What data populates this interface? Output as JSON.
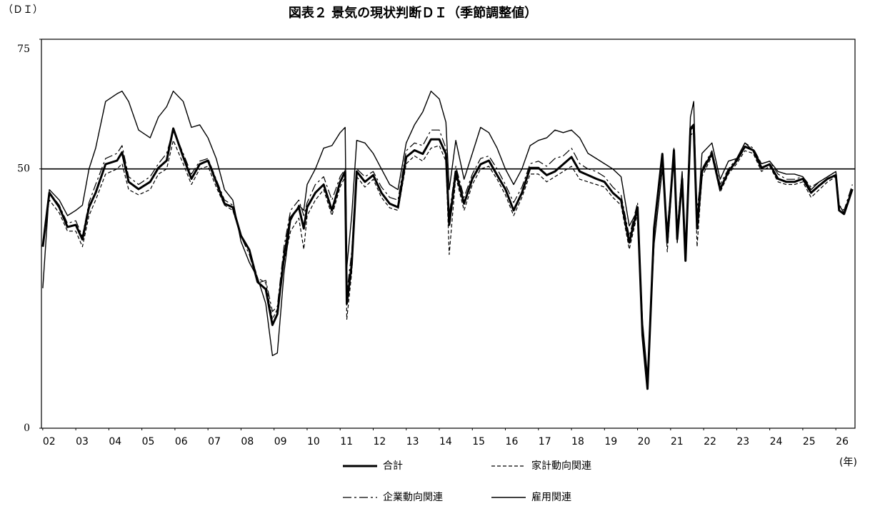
{
  "chart_data": {
    "type": "line",
    "title": "図表２ 景気の現状判断ＤＩ（季節調整値）",
    "y_label": "（ＤＩ）",
    "x_label": "(年)",
    "xlim": [
      2001.96,
      2026.58
    ],
    "ylim": [
      0,
      75
    ],
    "yticks": [
      0,
      50,
      75
    ],
    "xticks": [
      {
        "value": 2002,
        "label": "02"
      },
      {
        "value": 2003,
        "label": "03"
      },
      {
        "value": 2004,
        "label": "04"
      },
      {
        "value": 2005,
        "label": "05"
      },
      {
        "value": 2006,
        "label": "06"
      },
      {
        "value": 2007,
        "label": "07"
      },
      {
        "value": 2008,
        "label": "08"
      },
      {
        "value": 2009,
        "label": "09"
      },
      {
        "value": 2010,
        "label": "10"
      },
      {
        "value": 2011,
        "label": "11"
      },
      {
        "value": 2012,
        "label": "12"
      },
      {
        "value": 2013,
        "label": "13"
      },
      {
        "value": 2014,
        "label": "14"
      },
      {
        "value": 2015,
        "label": "15"
      },
      {
        "value": 2016,
        "label": "16"
      },
      {
        "value": 2017,
        "label": "17"
      },
      {
        "value": 2018,
        "label": "18"
      },
      {
        "value": 2019,
        "label": "19"
      },
      {
        "value": 2020,
        "label": "20"
      },
      {
        "value": 2021,
        "label": "21"
      },
      {
        "value": 2022,
        "label": "22"
      },
      {
        "value": 2023,
        "label": "23"
      },
      {
        "value": 2024,
        "label": "24"
      },
      {
        "value": 2025,
        "label": "25"
      },
      {
        "value": 2026,
        "label": "26"
      }
    ],
    "reference_line": 50,
    "x": [
      2002.0,
      2002.2,
      2002.5,
      2002.75,
      2003.0,
      2003.2,
      2003.4,
      2003.6,
      2003.9,
      2004.25,
      2004.4,
      2004.6,
      2004.9,
      2005.25,
      2005.5,
      2005.75,
      2005.95,
      2006.25,
      2006.5,
      2006.75,
      2007.0,
      2007.25,
      2007.5,
      2007.75,
      2008.0,
      2008.25,
      2008.5,
      2008.75,
      2008.95,
      2009.1,
      2009.3,
      2009.5,
      2009.75,
      2009.9,
      2010.0,
      2010.25,
      2010.5,
      2010.75,
      2011.0,
      2011.15,
      2011.2,
      2011.35,
      2011.5,
      2011.75,
      2012.0,
      2012.25,
      2012.5,
      2012.75,
      2013.0,
      2013.25,
      2013.5,
      2013.75,
      2014.0,
      2014.2,
      2014.3,
      2014.5,
      2014.75,
      2015.0,
      2015.25,
      2015.5,
      2015.75,
      2016.0,
      2016.25,
      2016.5,
      2016.75,
      2017.0,
      2017.25,
      2017.5,
      2017.75,
      2018.0,
      2018.25,
      2018.5,
      2018.75,
      2019.0,
      2019.25,
      2019.5,
      2019.75,
      2020.0,
      2020.15,
      2020.3,
      2020.5,
      2020.75,
      2020.9,
      2021.1,
      2021.2,
      2021.35,
      2021.45,
      2021.6,
      2021.7,
      2021.8,
      2021.95,
      2022.25,
      2022.5,
      2022.75,
      2023.0,
      2023.25,
      2023.5,
      2023.75,
      2024.0,
      2024.25,
      2024.5,
      2024.75,
      2025.0,
      2025.25,
      2025.5,
      2025.75,
      2026.0,
      2026.1,
      2026.25,
      2026.5
    ],
    "series": [
      {
        "name": "合計",
        "color": "#000000",
        "width": 3,
        "style": "solid",
        "values": [
          35,
          45.4,
          42.6,
          38.8,
          39.2,
          36.4,
          42.6,
          45.4,
          50.9,
          51.6,
          53.2,
          47.5,
          46.1,
          47.5,
          50.2,
          51.6,
          57.8,
          52.3,
          48.1,
          50.9,
          51.6,
          47.5,
          43.3,
          42.6,
          37.1,
          34.4,
          28.2,
          26.8,
          19.9,
          22,
          33,
          40.6,
          42.6,
          38.5,
          42.6,
          45.4,
          47,
          42,
          47.5,
          49.5,
          24,
          31.6,
          49.5,
          47.5,
          48.8,
          45.4,
          43.3,
          42.6,
          52.3,
          53.6,
          52.9,
          55.7,
          55.7,
          52.9,
          39.2,
          49.5,
          43.3,
          48.1,
          50.9,
          51.6,
          48.8,
          46.1,
          42,
          45.4,
          50.2,
          50.2,
          48.8,
          49.5,
          50.9,
          52.3,
          49.5,
          48.8,
          48.1,
          47.5,
          45.4,
          44,
          35.8,
          42.6,
          17.9,
          7.6,
          38.5,
          52.9,
          35.8,
          53.6,
          36.5,
          48.1,
          32.3,
          57.8,
          58.5,
          38.5,
          49.5,
          53,
          46.1,
          49.5,
          51.6,
          54.3,
          53.6,
          50.2,
          50.9,
          48.1,
          47.5,
          47.5,
          48.1,
          45.4,
          46.8,
          48.1,
          48.8,
          42,
          41.3,
          46.1
        ]
      },
      {
        "name": "家計動向関連",
        "color": "#000000",
        "width": 1.2,
        "style": "dashed",
        "values": [
          36,
          44,
          41.5,
          38,
          38,
          35,
          41,
          44,
          49,
          50,
          51,
          46,
          45,
          46,
          49,
          50,
          55.5,
          51,
          47,
          50,
          50.5,
          46.5,
          43,
          42,
          37,
          34.5,
          29,
          28,
          21,
          23,
          32,
          38,
          40.5,
          34.5,
          41,
          44,
          46,
          41,
          46.5,
          48.5,
          21,
          30,
          48.5,
          46.5,
          48,
          44.5,
          42.5,
          42,
          51,
          52.5,
          51.5,
          54,
          54.5,
          51.5,
          33.5,
          48.5,
          42,
          47,
          50,
          50.5,
          48,
          45,
          41,
          44.5,
          49,
          49,
          47.5,
          48.5,
          49.5,
          50.5,
          48,
          47.5,
          47,
          46.5,
          44.5,
          43,
          34.5,
          41.5,
          18.5,
          9,
          38,
          52,
          34,
          52.5,
          35.5,
          47,
          32,
          56.5,
          57,
          35,
          48.5,
          52.5,
          45.5,
          49,
          51,
          53.5,
          53,
          49.5,
          50.5,
          47.5,
          47,
          47,
          47.5,
          44.5,
          46,
          47.5,
          48.5,
          42,
          41.5,
          46
        ]
      },
      {
        "name": "企業動向関連",
        "color": "#000000",
        "width": 1.2,
        "style": "dashdot",
        "values": [
          35,
          45.5,
          43,
          39.5,
          40,
          37,
          43.5,
          47,
          52,
          53,
          54.5,
          48.5,
          47,
          48.5,
          51,
          53,
          57.5,
          53,
          49,
          51.5,
          52,
          48,
          44,
          43,
          37,
          33.5,
          28,
          28.5,
          22.5,
          23.5,
          35,
          42,
          44,
          41,
          43.5,
          47,
          48.5,
          44,
          48.5,
          50,
          26,
          34,
          50,
          48.5,
          49.5,
          46.5,
          44.5,
          44,
          53.5,
          55,
          54.5,
          57.5,
          57.5,
          54,
          41,
          50.5,
          44.5,
          49,
          52,
          52.5,
          50,
          47,
          43.5,
          46.5,
          51,
          51.5,
          50.5,
          52,
          52.5,
          54,
          51,
          50,
          49.5,
          48.5,
          46.5,
          45,
          37,
          43.5,
          18,
          8.5,
          39,
          51.5,
          37,
          54,
          38,
          49,
          34,
          57.5,
          58,
          42,
          50,
          53.5,
          47,
          50,
          52,
          55,
          54,
          51,
          51.5,
          49,
          48,
          48,
          48.5,
          46.5,
          47.5,
          48.5,
          49.5,
          43,
          42,
          47
        ]
      },
      {
        "name": "雇用関連",
        "color": "#000000",
        "width": 1.4,
        "style": "solid",
        "values": [
          27,
          46,
          44,
          41,
          42,
          43,
          50,
          54,
          63,
          64.5,
          65,
          63,
          57.5,
          56,
          60,
          62,
          65,
          63,
          58,
          58.5,
          56,
          52,
          46,
          44,
          36,
          32,
          29,
          24,
          14,
          14.5,
          30,
          40,
          43,
          42,
          47,
          50,
          54,
          54.5,
          57,
          58,
          31,
          41,
          55.5,
          55,
          53,
          50,
          47,
          46,
          55,
          58.5,
          61,
          65,
          63.5,
          59,
          46,
          55.5,
          48,
          53,
          58,
          57,
          54,
          50,
          47,
          50,
          54.5,
          55.5,
          56,
          57.5,
          57,
          57.5,
          56,
          53,
          52,
          51,
          50,
          48.5,
          39,
          42,
          20.5,
          10,
          35.5,
          50,
          38.5,
          52,
          38,
          49.5,
          34,
          60,
          63,
          39,
          53,
          55,
          48,
          51.5,
          52,
          55,
          53.5,
          51,
          51.5,
          49.5,
          49,
          49,
          48.5,
          46,
          47.5,
          48.5,
          49.5,
          43,
          41.5,
          46
        ]
      }
    ]
  }
}
